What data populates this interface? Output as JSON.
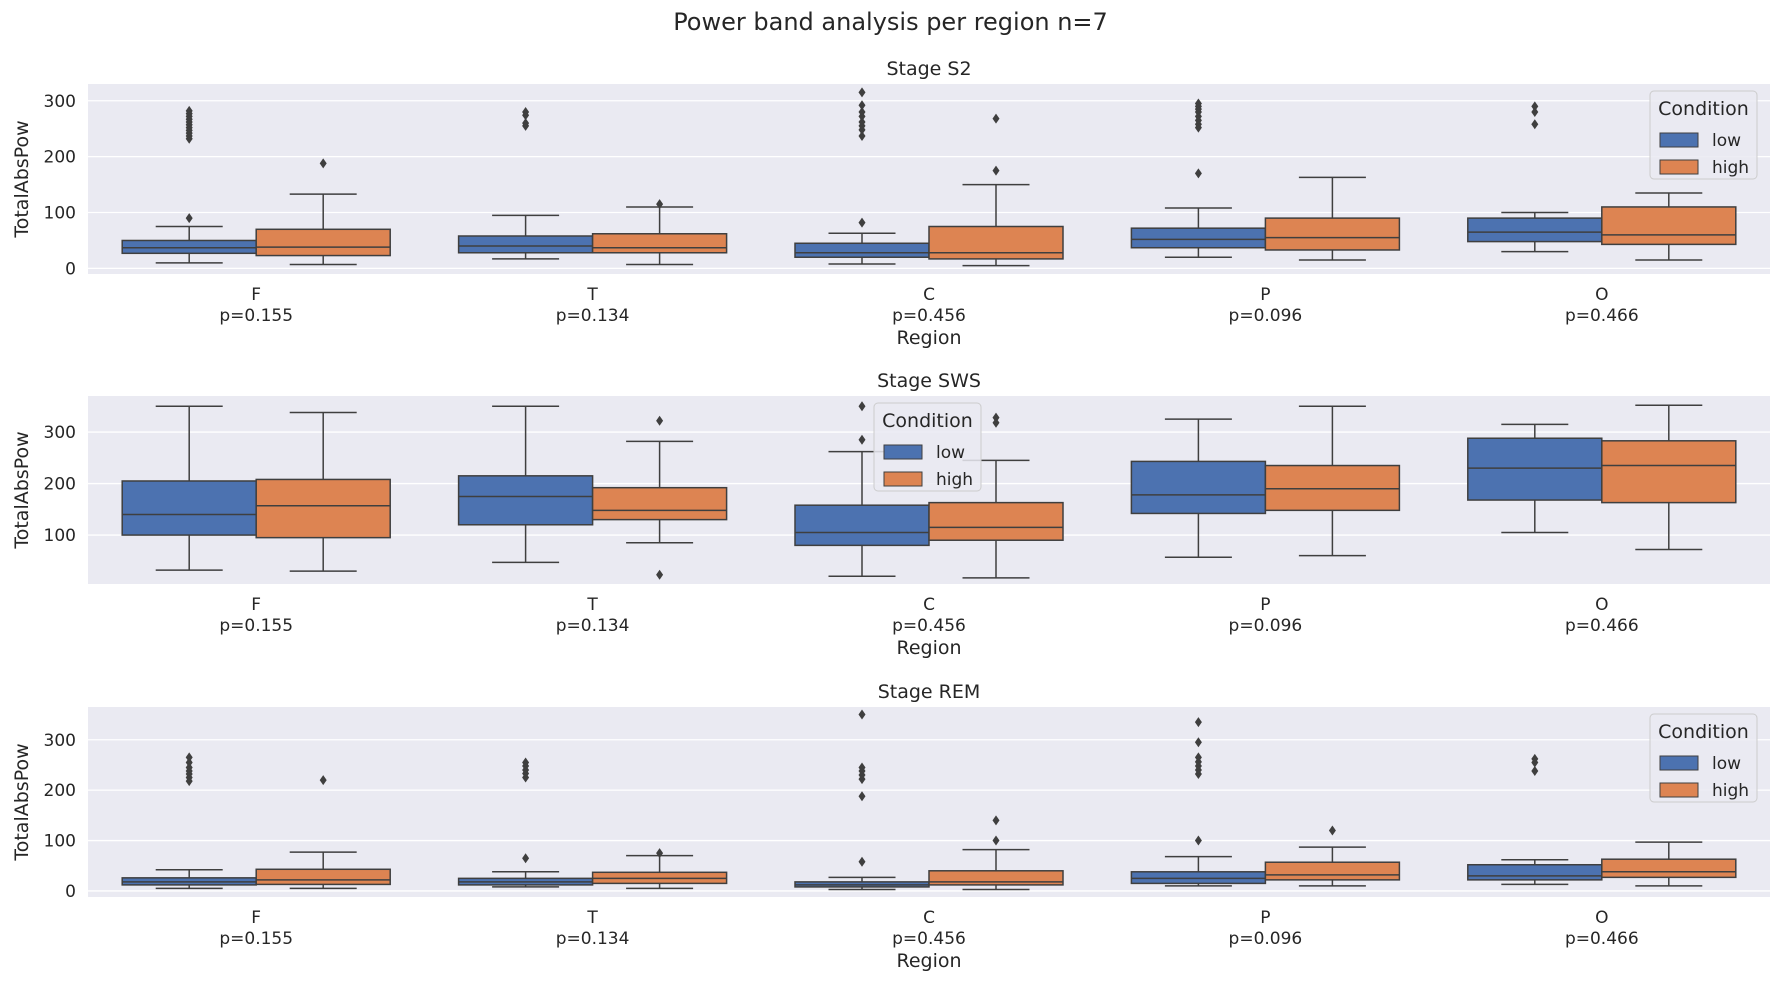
{
  "figure": {
    "suptitle": "Power band analysis per region n=7",
    "colors": {
      "low": "#4c72b0",
      "high": "#dd8452",
      "background": "#eaeaf2",
      "grid": "#ffffff",
      "line": "#3f3f3f"
    }
  },
  "chart_data": [
    {
      "type": "box",
      "title": "Stage S2",
      "xlabel": "Region",
      "ylabel": "TotalAbsPow",
      "categories": [
        "F",
        "T",
        "C",
        "P",
        "O"
      ],
      "category_pvalues": [
        "p=0.155",
        "p=0.134",
        "p=0.456",
        "p=0.096",
        "p=0.466"
      ],
      "yticks": [
        0,
        100,
        200,
        300
      ],
      "ylim": [
        -10,
        330
      ],
      "grid": true,
      "legend": {
        "title": "Condition",
        "entries": [
          "low",
          "high"
        ],
        "placement": "upper right"
      },
      "series": [
        {
          "name": "low",
          "boxes": [
            {
              "min": 10,
              "q1": 27,
              "median": 37,
              "q3": 50,
              "max": 75,
              "outliers": [
                90,
                232,
                237,
                242,
                247,
                252,
                257,
                262,
                267,
                272,
                277,
                282
              ]
            },
            {
              "min": 17,
              "q1": 28,
              "median": 40,
              "q3": 58,
              "max": 95,
              "outliers": [
                255,
                260,
                274,
                280
              ]
            },
            {
              "min": 8,
              "q1": 20,
              "median": 28,
              "q3": 45,
              "max": 63,
              "outliers": [
                82,
                237,
                248,
                255,
                262,
                272,
                280,
                292,
                315
              ]
            },
            {
              "min": 20,
              "q1": 37,
              "median": 52,
              "q3": 72,
              "max": 108,
              "outliers": [
                170,
                252,
                258,
                265,
                272,
                280,
                285,
                290,
                295
              ]
            },
            {
              "min": 30,
              "q1": 48,
              "median": 65,
              "q3": 90,
              "max": 100,
              "outliers": [
                258,
                280,
                290
              ]
            }
          ]
        },
        {
          "name": "high",
          "boxes": [
            {
              "min": 7,
              "q1": 23,
              "median": 38,
              "q3": 70,
              "max": 133,
              "outliers": [
                188
              ]
            },
            {
              "min": 7,
              "q1": 28,
              "median": 37,
              "q3": 62,
              "max": 110,
              "outliers": [
                115
              ]
            },
            {
              "min": 5,
              "q1": 17,
              "median": 28,
              "q3": 75,
              "max": 150,
              "outliers": [
                175,
                268
              ]
            },
            {
              "min": 15,
              "q1": 33,
              "median": 55,
              "q3": 90,
              "max": 163,
              "outliers": []
            },
            {
              "min": 15,
              "q1": 43,
              "median": 60,
              "q3": 110,
              "max": 135,
              "outliers": []
            }
          ]
        }
      ]
    },
    {
      "type": "box",
      "title": "Stage SWS",
      "xlabel": "Region",
      "ylabel": "TotalAbsPow",
      "categories": [
        "F",
        "T",
        "C",
        "P",
        "O"
      ],
      "category_pvalues": [
        "p=0.155",
        "p=0.134",
        "p=0.456",
        "p=0.096",
        "p=0.466"
      ],
      "yticks": [
        100,
        200,
        300
      ],
      "ylim": [
        5,
        370
      ],
      "grid": true,
      "legend": {
        "title": "Condition",
        "entries": [
          "low",
          "high"
        ],
        "placement": "upper center"
      },
      "series": [
        {
          "name": "low",
          "boxes": [
            {
              "min": 32,
              "q1": 100,
              "median": 140,
              "q3": 205,
              "max": 350,
              "outliers": []
            },
            {
              "min": 47,
              "q1": 120,
              "median": 175,
              "q3": 215,
              "max": 350,
              "outliers": []
            },
            {
              "min": 20,
              "q1": 80,
              "median": 105,
              "q3": 158,
              "max": 262,
              "outliers": [
                285,
                350
              ]
            },
            {
              "min": 57,
              "q1": 142,
              "median": 178,
              "q3": 243,
              "max": 325,
              "outliers": []
            },
            {
              "min": 105,
              "q1": 168,
              "median": 230,
              "q3": 288,
              "max": 315,
              "outliers": []
            }
          ]
        },
        {
          "name": "high",
          "boxes": [
            {
              "min": 30,
              "q1": 95,
              "median": 157,
              "q3": 208,
              "max": 338,
              "outliers": []
            },
            {
              "min": 85,
              "q1": 130,
              "median": 148,
              "q3": 192,
              "max": 282,
              "outliers": [
                23,
                322
              ]
            },
            {
              "min": 17,
              "q1": 90,
              "median": 115,
              "q3": 163,
              "max": 245,
              "outliers": [
                318,
                328
              ]
            },
            {
              "min": 60,
              "q1": 148,
              "median": 190,
              "q3": 235,
              "max": 350,
              "outliers": []
            },
            {
              "min": 72,
              "q1": 163,
              "median": 235,
              "q3": 283,
              "max": 352,
              "outliers": []
            }
          ]
        }
      ]
    },
    {
      "type": "box",
      "title": "Stage REM",
      "xlabel": "Region",
      "ylabel": "TotalAbsPow",
      "categories": [
        "F",
        "T",
        "C",
        "P",
        "O"
      ],
      "category_pvalues": [
        "p=0.155",
        "p=0.134",
        "p=0.456",
        "p=0.096",
        "p=0.466"
      ],
      "yticks": [
        0,
        100,
        200,
        300
      ],
      "ylim": [
        -12,
        365
      ],
      "grid": true,
      "legend": {
        "title": "Condition",
        "entries": [
          "low",
          "high"
        ],
        "placement": "upper right"
      },
      "series": [
        {
          "name": "low",
          "boxes": [
            {
              "min": 5,
              "q1": 12,
              "median": 18,
              "q3": 26,
              "max": 42,
              "outliers": [
                218,
                225,
                232,
                238,
                245,
                255,
                265
              ]
            },
            {
              "min": 8,
              "q1": 12,
              "median": 18,
              "q3": 25,
              "max": 38,
              "outliers": [
                65,
                225,
                233,
                240,
                248,
                255
              ]
            },
            {
              "min": 3,
              "q1": 8,
              "median": 12,
              "q3": 18,
              "max": 27,
              "outliers": [
                58,
                188,
                222,
                230,
                238,
                245,
                350
              ]
            },
            {
              "min": 10,
              "q1": 15,
              "median": 25,
              "q3": 38,
              "max": 68,
              "outliers": [
                100,
                232,
                240,
                248,
                256,
                265,
                295,
                335
              ]
            },
            {
              "min": 13,
              "q1": 22,
              "median": 30,
              "q3": 52,
              "max": 62,
              "outliers": [
                238,
                255,
                262
              ]
            }
          ]
        },
        {
          "name": "high",
          "boxes": [
            {
              "min": 5,
              "q1": 13,
              "median": 22,
              "q3": 43,
              "max": 77,
              "outliers": [
                220
              ]
            },
            {
              "min": 5,
              "q1": 15,
              "median": 25,
              "q3": 37,
              "max": 70,
              "outliers": [
                75
              ]
            },
            {
              "min": 3,
              "q1": 12,
              "median": 18,
              "q3": 40,
              "max": 82,
              "outliers": [
                100,
                140
              ]
            },
            {
              "min": 10,
              "q1": 22,
              "median": 32,
              "q3": 57,
              "max": 87,
              "outliers": [
                120
              ]
            },
            {
              "min": 10,
              "q1": 27,
              "median": 38,
              "q3": 63,
              "max": 97,
              "outliers": []
            }
          ]
        }
      ]
    }
  ]
}
